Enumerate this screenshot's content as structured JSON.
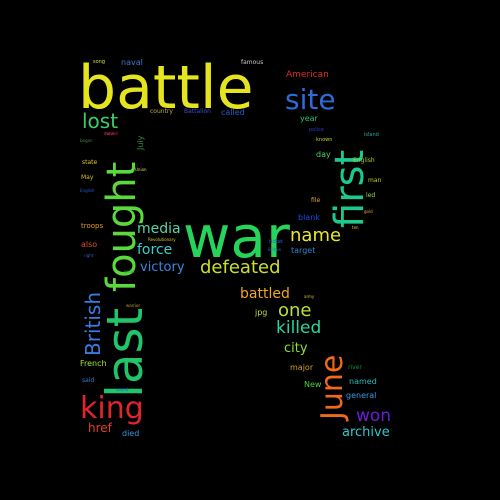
{
  "words": [
    {
      "text": "battle",
      "color": "#e5e51f"
    },
    {
      "text": "war",
      "color": "#27d45a"
    },
    {
      "text": "last",
      "color": "#22c46a"
    },
    {
      "text": "fought",
      "color": "#5bd83b"
    },
    {
      "text": "first",
      "color": "#1fc88c"
    },
    {
      "text": "site",
      "color": "#2f6bd6"
    },
    {
      "text": "king",
      "color": "#e0262a"
    },
    {
      "text": "June",
      "color": "#f06a1a"
    },
    {
      "text": "defeated",
      "color": "#c9e02a"
    },
    {
      "text": "lost",
      "color": "#36d06a"
    },
    {
      "text": "British",
      "color": "#3a7be0"
    },
    {
      "text": "name",
      "color": "#e8e830"
    },
    {
      "text": "one",
      "color": "#b8e03a"
    },
    {
      "text": "killed",
      "color": "#2ad4a0"
    },
    {
      "text": "won",
      "color": "#6a1fd6"
    },
    {
      "text": "media",
      "color": "#56d6a8"
    },
    {
      "text": "force",
      "color": "#38d0c8"
    },
    {
      "text": "battled",
      "color": "#f0a81c"
    },
    {
      "text": "victory",
      "color": "#3a88e0"
    },
    {
      "text": "city",
      "color": "#8ae03a"
    },
    {
      "text": "href",
      "color": "#e04028"
    },
    {
      "text": "archive",
      "color": "#30c8c8"
    },
    {
      "text": "American",
      "color": "#e02a2a"
    },
    {
      "text": "July",
      "color": "#2a8a4a"
    },
    {
      "text": "blank",
      "color": "#1a4ae0"
    },
    {
      "text": "target",
      "color": "#2a8ad0"
    },
    {
      "text": "day",
      "color": "#4ad06a"
    },
    {
      "text": "year",
      "color": "#2ac070"
    },
    {
      "text": "also",
      "color": "#e04a2a"
    },
    {
      "text": "troops",
      "color": "#e09a2a"
    },
    {
      "text": "jpg",
      "color": "#b8e03a"
    },
    {
      "text": "major",
      "color": "#c8a02a"
    },
    {
      "text": "named",
      "color": "#2ab8b8"
    },
    {
      "text": "general",
      "color": "#3a98e0"
    },
    {
      "text": "French",
      "color": "#a8e03a"
    },
    {
      "text": "New",
      "color": "#4ad04a"
    },
    {
      "text": "died",
      "color": "#3a98e0"
    },
    {
      "text": "said",
      "color": "#2a80d0"
    },
    {
      "text": "river",
      "color": "#1a8a3a"
    },
    {
      "text": "English",
      "color": "#a8d02a"
    },
    {
      "text": "state",
      "color": "#e0c82a"
    },
    {
      "text": "May",
      "color": "#d4c02a"
    },
    {
      "text": "naval",
      "color": "#3a7ad0"
    },
    {
      "text": "famous",
      "color": "#c8c8c8"
    },
    {
      "text": "called",
      "color": "#2a5ad0"
    },
    {
      "text": "country",
      "color": "#c8a830"
    },
    {
      "text": "Battalion",
      "color": "#3a4ad0"
    },
    {
      "text": "man",
      "color": "#c8c82a"
    },
    {
      "text": "led",
      "color": "#8ae03a"
    },
    {
      "text": "file",
      "color": "#e0a82a"
    },
    {
      "text": "island",
      "color": "#2aa8a8"
    },
    {
      "text": "Revolutionary",
      "color": "#d4d42a"
    },
    {
      "text": "song",
      "color": "#c8e03a"
    },
    {
      "text": "known",
      "color": "#c8d42a"
    },
    {
      "text": "police",
      "color": "#2a3ad0"
    },
    {
      "text": "English",
      "color": "#2a5ad0"
    },
    {
      "text": "ticket",
      "color": "#2a5ad0"
    },
    {
      "text": "great",
      "color": "#2aa84a"
    },
    {
      "text": "tank",
      "color": "#a82ad0"
    },
    {
      "text": "right",
      "color": "#3a5ad0"
    },
    {
      "text": "Britain",
      "color": "#3a5ad0"
    },
    {
      "text": "Union",
      "color": "#c8e03a"
    },
    {
      "text": "moved",
      "color": "#e02a2a"
    },
    {
      "text": "army",
      "color": "#d0c02a"
    },
    {
      "text": "began",
      "color": "#3a8a3a"
    },
    {
      "text": "warrior",
      "color": "#c8a02a"
    },
    {
      "text": "sound",
      "color": "#2a5ad0"
    },
    {
      "text": "gold",
      "color": "#e0a82a"
    },
    {
      "text": "ten",
      "color": "#e0c82a"
    }
  ]
}
